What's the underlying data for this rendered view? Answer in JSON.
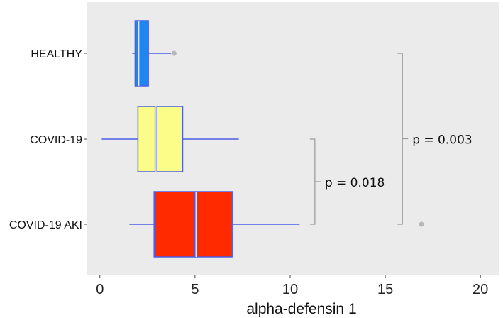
{
  "chart_data": {
    "type": "boxplot",
    "orientation": "horizontal",
    "xlabel": "alpha-defensin 1",
    "xlim": [
      -0.7,
      21
    ],
    "xticks": [
      0,
      5,
      10,
      15,
      20
    ],
    "grid": false,
    "background": "#ebebeb",
    "categories": [
      "HEALTHY",
      "COVID-19",
      "COVID-19 AKI"
    ],
    "boxes": [
      {
        "category": "HEALTHY",
        "whisker_low": 1.7,
        "q1": 1.85,
        "median": 2.05,
        "q3": 2.55,
        "whisker_high": 3.75,
        "outliers": [
          3.9
        ],
        "fill": "#1e86f0"
      },
      {
        "category": "COVID-19",
        "whisker_low": 0.1,
        "q1": 2.0,
        "median": 2.95,
        "q3": 4.35,
        "whisker_high": 7.3,
        "outliers": [],
        "fill": "#fcfc88"
      },
      {
        "category": "COVID-19 AKI",
        "whisker_low": 1.55,
        "q1": 2.85,
        "median": 5.05,
        "q3": 6.95,
        "whisker_high": 10.5,
        "outliers": [
          16.9
        ],
        "fill": "#ff2a00"
      }
    ],
    "box_edge_color": "#4a5ee8",
    "outlier_color": "#b8b8b8",
    "bracket_color": "#999999",
    "annotations": [
      {
        "text": "p = 0.018",
        "from": "COVID-19",
        "to": "COVID-19 AKI",
        "x": 11.3
      },
      {
        "text": "p = 0.003",
        "from": "HEALTHY",
        "to": "COVID-19 AKI",
        "x": 15.9
      }
    ]
  }
}
